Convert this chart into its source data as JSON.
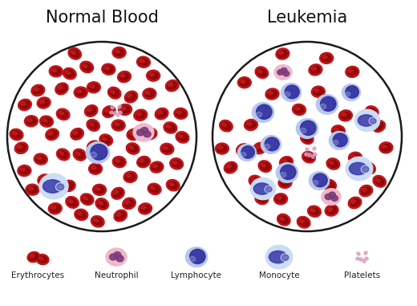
{
  "title_normal": "Normal Blood",
  "title_leukemia": "Leukemia",
  "bg_color": "#ffffff",
  "circle_edge_color": "#1a1a1a",
  "rbc_color": "#c0141a",
  "rbc_dark": "#7a0000",
  "rbc_light": "#e03030",
  "neutrophil_fill": "#f0b8cc",
  "neutrophil_nucleus": "#7a3a7a",
  "lymphocyte_fill": "#b8c8ec",
  "lymphocyte_nucleus": "#3030a0",
  "monocyte_fill": "#ccdcf4",
  "monocyte_nucleus": "#3838a8",
  "platelet_color": "#d8a0c0",
  "legend_labels": [
    "Erythrocytes",
    "Neutrophil",
    "Lymphocyte",
    "Monocyte",
    "Platelets"
  ],
  "figsize": [
    5.2,
    3.81
  ],
  "dpi": 100
}
